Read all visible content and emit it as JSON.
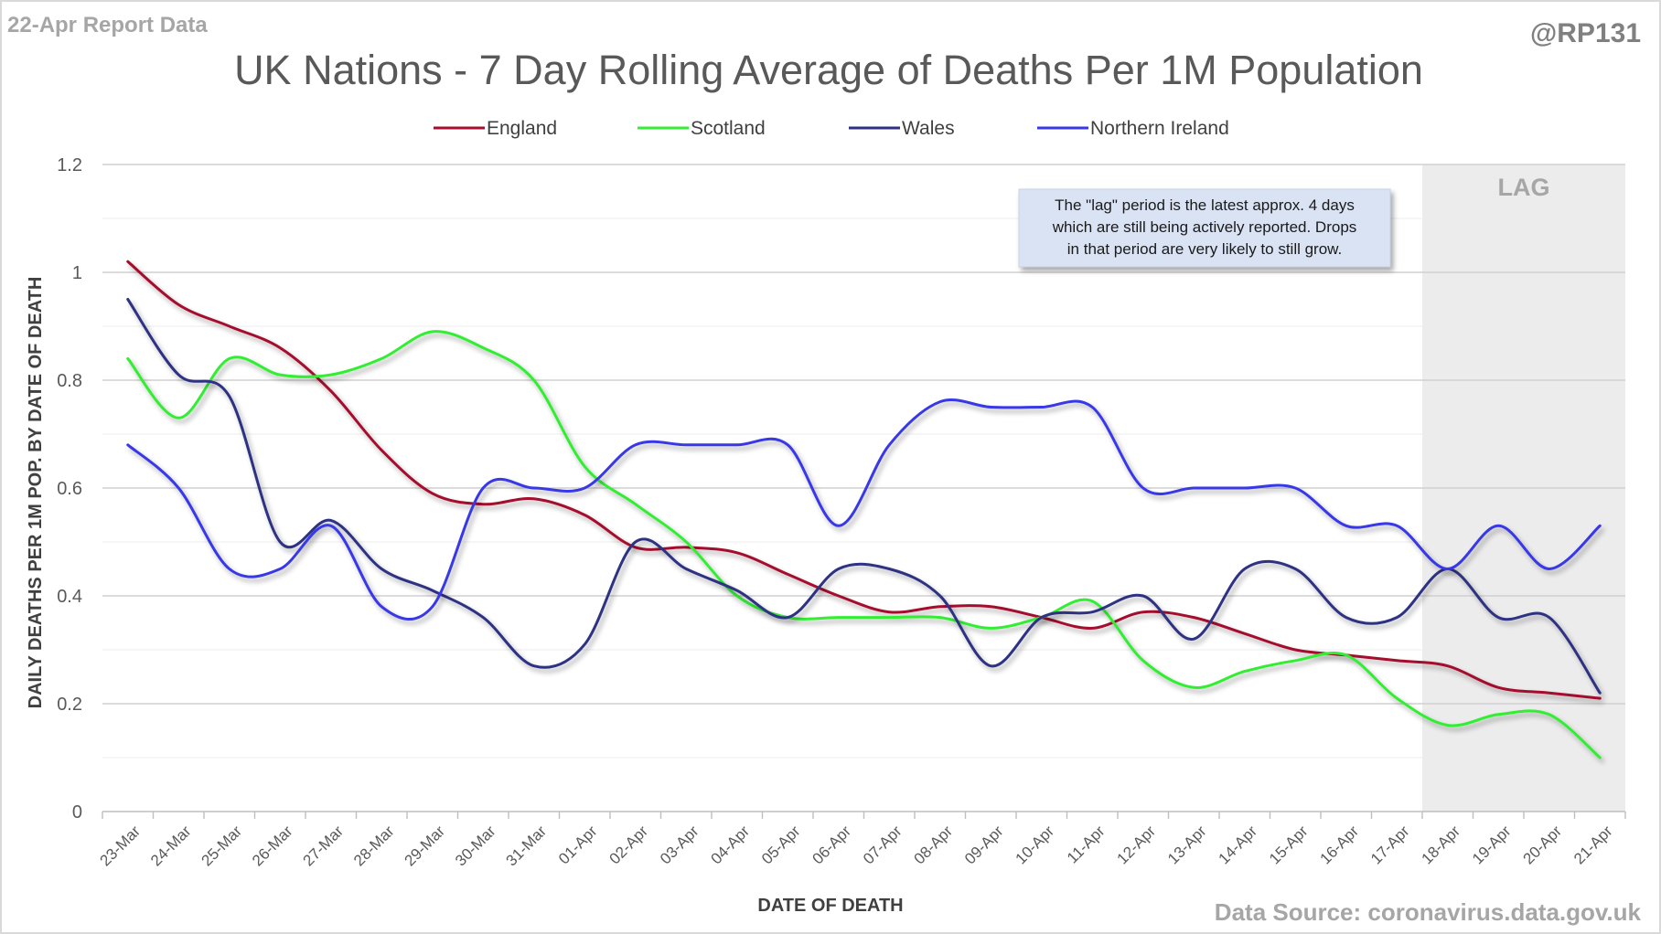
{
  "header": {
    "report_label": "22-Apr Report Data",
    "handle": "@RP131",
    "source": "Data Source: coronavirus.data.gov.uk"
  },
  "chart_data": {
    "type": "line",
    "title": "UK Nations - 7 Day Rolling Average of Deaths Per 1M Population",
    "xlabel": "DATE OF DEATH",
    "ylabel": "DAILY DEATHS PER 1M POP. BY DATE OF DEATH",
    "ylim": [
      0,
      1.2
    ],
    "yticks": [
      0,
      0.2,
      0.4,
      0.6,
      0.8,
      1,
      1.2
    ],
    "ytick_labels": [
      "0",
      "0.2",
      "0.4",
      "0.6",
      "0.8",
      "1",
      "1.2"
    ],
    "grid": true,
    "legend_position": "top-center",
    "x": [
      "23-Mar",
      "24-Mar",
      "25-Mar",
      "26-Mar",
      "27-Mar",
      "28-Mar",
      "29-Mar",
      "30-Mar",
      "31-Mar",
      "01-Apr",
      "02-Apr",
      "03-Apr",
      "04-Apr",
      "05-Apr",
      "06-Apr",
      "07-Apr",
      "08-Apr",
      "09-Apr",
      "10-Apr",
      "11-Apr",
      "12-Apr",
      "13-Apr",
      "14-Apr",
      "15-Apr",
      "16-Apr",
      "17-Apr",
      "18-Apr",
      "19-Apr",
      "20-Apr",
      "21-Apr"
    ],
    "series": [
      {
        "name": "England",
        "color": "#a50f2d",
        "values": [
          1.02,
          0.94,
          0.9,
          0.86,
          0.78,
          0.67,
          0.59,
          0.57,
          0.58,
          0.55,
          0.49,
          0.49,
          0.48,
          0.44,
          0.4,
          0.37,
          0.38,
          0.38,
          0.36,
          0.34,
          0.37,
          0.36,
          0.33,
          0.3,
          0.29,
          0.28,
          0.27,
          0.23,
          0.22,
          0.21
        ]
      },
      {
        "name": "Scotland",
        "color": "#33ee33",
        "values": [
          0.84,
          0.73,
          0.84,
          0.81,
          0.81,
          0.84,
          0.89,
          0.86,
          0.8,
          0.64,
          0.57,
          0.5,
          0.4,
          0.36,
          0.36,
          0.36,
          0.36,
          0.34,
          0.36,
          0.39,
          0.28,
          0.23,
          0.26,
          0.28,
          0.29,
          0.21,
          0.16,
          0.18,
          0.18,
          0.1
        ]
      },
      {
        "name": "Wales",
        "color": "#2e3082",
        "values": [
          0.95,
          0.81,
          0.77,
          0.5,
          0.54,
          0.45,
          0.41,
          0.36,
          0.27,
          0.31,
          0.5,
          0.45,
          0.41,
          0.36,
          0.45,
          0.45,
          0.4,
          0.27,
          0.36,
          0.37,
          0.4,
          0.32,
          0.45,
          0.45,
          0.36,
          0.36,
          0.45,
          0.36,
          0.36,
          0.22
        ]
      },
      {
        "name": "Northern Ireland",
        "color": "#3838e8",
        "values": [
          0.68,
          0.6,
          0.45,
          0.45,
          0.53,
          0.38,
          0.38,
          0.6,
          0.6,
          0.6,
          0.68,
          0.68,
          0.68,
          0.68,
          0.53,
          0.68,
          0.76,
          0.75,
          0.75,
          0.75,
          0.6,
          0.6,
          0.6,
          0.6,
          0.53,
          0.53,
          0.45,
          0.53,
          0.45,
          0.53
        ]
      }
    ],
    "lag_region": {
      "label": "LAG",
      "start": "18-Apr",
      "end": "21-Apr"
    },
    "annotation": {
      "lines": [
        "The \"lag\" period is the latest approx. 4 days",
        "which are still being actively reported.  Drops",
        "in that period are very likely to still grow."
      ]
    }
  }
}
